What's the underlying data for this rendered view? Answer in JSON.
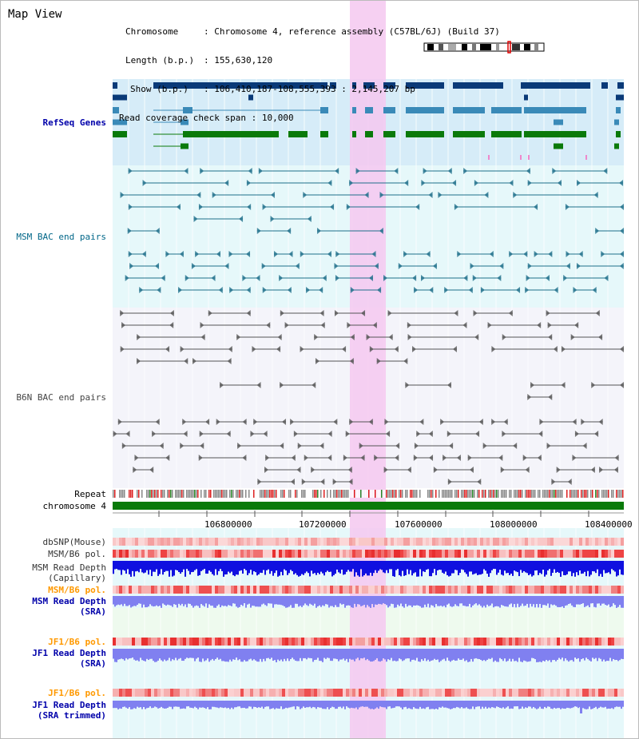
{
  "app": {
    "title": "Map View"
  },
  "info": {
    "rows": [
      {
        "label": "Chromosome",
        "value": "Chromosome 4, reference assembly (C57BL/6J) (Build 37)"
      },
      {
        "label": "Length (b.p.)",
        "value": "155,630,120"
      },
      {
        "label": "Show (b.p.)",
        "value": "106,410,187-108,555,393 : 2,145,207 bp"
      },
      {
        "label": "Read coverage check span",
        "value": "10,000"
      }
    ]
  },
  "tracks": {
    "refseq": {
      "label": "RefSeq Genes",
      "color": "#0000aa"
    },
    "msm_bac": {
      "label": "MSM BAC end pairs",
      "color": "#006688"
    },
    "b6n_bac": {
      "label": "B6N BAC end pairs",
      "color": "#444444"
    },
    "repeat": {
      "label": "Repeat",
      "color": "#000000"
    },
    "chromosome": {
      "label": "chromosome 4",
      "color": "#000000"
    },
    "dbsnp": {
      "label": "dbSNP(Mouse)",
      "color": "#333333"
    },
    "msm_b6_pol1": {
      "label": "MSM/B6 pol.",
      "color": "#333333"
    },
    "msm_depth_cap": {
      "label_line1": "MSM Read Depth",
      "label_line2": "(Capillary)",
      "color": "#333333"
    },
    "msm_b6_pol2": {
      "label": "MSM/B6 pol.",
      "color": "#ff9900"
    },
    "msm_depth_sra": {
      "label_line1": "MSM Read Depth",
      "label_line2": "(SRA)",
      "color": "#0000aa"
    },
    "jf1_b6_pol1": {
      "label": "JF1/B6 pol.",
      "color": "#ff9900"
    },
    "jf1_depth_sra": {
      "label_line1": "JF1 Read Depth",
      "label_line2": "(SRA)",
      "color": "#0000aa"
    },
    "jf1_b6_pol2": {
      "label": "JF1/B6 pol.",
      "color": "#ff9900"
    },
    "jf1_depth_trim": {
      "label_line1": "JF1 Read Depth",
      "label_line2": "(SRA trimmed)",
      "color": "#0000aa"
    }
  },
  "axis": {
    "ticks": [
      {
        "pos": 106800000,
        "label": "106800000"
      },
      {
        "pos": 107200000,
        "label": "107200000"
      },
      {
        "pos": 107600000,
        "label": "107600000"
      },
      {
        "pos": 108000000,
        "label": "108000000"
      },
      {
        "pos": 108400000,
        "label": "108400000"
      }
    ]
  },
  "colors": {
    "refseq_dark": "#0a3a78",
    "refseq_mid": "#3a8ab8",
    "refseq_green": "#0a7a0a",
    "highlight": "#f4c8f0",
    "msm_bg": "#e6f8fa",
    "refseq_bg": "#d6ecf8",
    "chromosome_green": "#0a7a0a",
    "depth_blue": "#1010e0",
    "depth_light": "#8080f0"
  }
}
